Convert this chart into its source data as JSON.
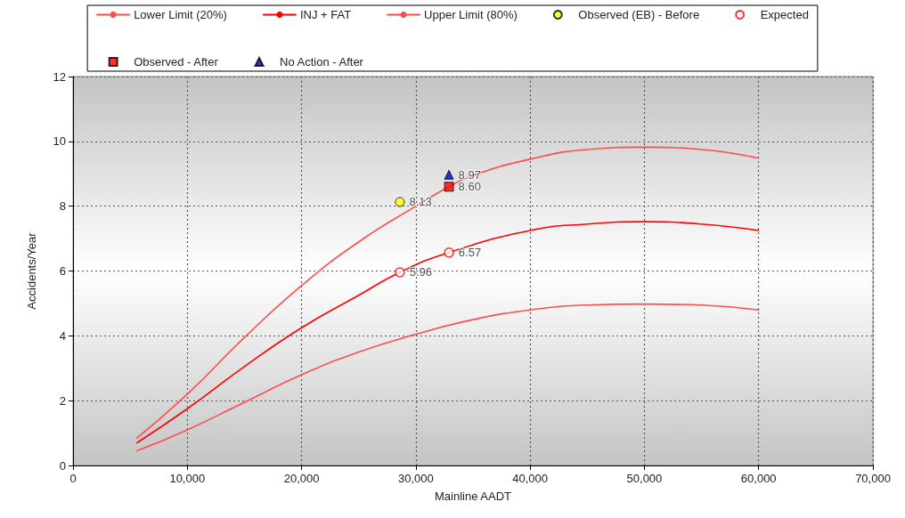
{
  "chart_data": {
    "type": "line",
    "xlabel": "Mainline AADT",
    "ylabel": "Accidents/Year",
    "series": [
      {
        "name": "Lower Limit (20%)",
        "color": "#ff4d4d",
        "x": [
          5600,
          10000,
          15000,
          20000,
          25000,
          30000,
          35000,
          40000,
          45000,
          50000,
          55000,
          60000
        ],
        "values": [
          0.45,
          1.1,
          1.95,
          2.8,
          3.5,
          4.05,
          4.5,
          4.8,
          4.95,
          4.98,
          4.95,
          4.8
        ]
      },
      {
        "name": "INJ + FAT",
        "color": "#ff0000",
        "x": [
          5600,
          10000,
          15000,
          20000,
          25000,
          28600,
          32900,
          40000,
          45000,
          50000,
          55000,
          60000
        ],
        "values": [
          0.7,
          1.75,
          3.05,
          4.25,
          5.25,
          5.96,
          6.57,
          7.25,
          7.45,
          7.52,
          7.45,
          7.25
        ]
      },
      {
        "name": "Upper Limit (80%)",
        "color": "#ff4d4d",
        "x": [
          5600,
          10000,
          15000,
          20000,
          25000,
          30000,
          32900,
          35000,
          40000,
          45000,
          50000,
          55000,
          60000
        ],
        "values": [
          0.85,
          2.2,
          3.95,
          5.55,
          6.9,
          8.0,
          8.6,
          8.95,
          9.45,
          9.75,
          9.82,
          9.75,
          9.48
        ]
      },
      {
        "name": "Observed (EB) - Before",
        "type": "scatter",
        "marker": "circle",
        "color": "#ffff00",
        "x": [
          28600
        ],
        "values": [
          8.13
        ],
        "value_labels": [
          "8.13"
        ]
      },
      {
        "name": "Expected",
        "type": "scatter",
        "marker": "circle",
        "color": "#ff0000",
        "x": [
          28600,
          32900
        ],
        "values": [
          5.96,
          6.57
        ],
        "value_labels": [
          "5.96",
          "6.57"
        ]
      },
      {
        "name": "Observed - After",
        "type": "scatter",
        "marker": "square",
        "color": "#ff0000",
        "x": [
          32900
        ],
        "values": [
          8.6
        ],
        "value_labels": [
          "8.60"
        ]
      },
      {
        "name": "No Action - After",
        "type": "scatter",
        "marker": "triangle",
        "color": "#0000cc",
        "x": [
          32900
        ],
        "values": [
          8.97
        ],
        "value_labels": [
          "8.97"
        ]
      }
    ],
    "xlim": [
      0,
      70000
    ],
    "xticks": [
      0,
      {
        "value": 10000,
        "label": "10,000"
      },
      {
        "value": 20000,
        "label": "20,000"
      },
      {
        "value": 30000,
        "label": "30,000"
      },
      {
        "value": 40000,
        "label": "40,000"
      },
      {
        "value": 50000,
        "label": "50,000"
      },
      {
        "value": 60000,
        "label": "60,000"
      },
      {
        "value": 70000,
        "label": "70,000"
      }
    ],
    "ylim": [
      0,
      12
    ],
    "yticks": [
      0,
      2,
      4,
      6,
      8,
      10,
      12
    ],
    "grid": true,
    "legend": "top",
    "marker": "none",
    "line_style": "solid"
  }
}
